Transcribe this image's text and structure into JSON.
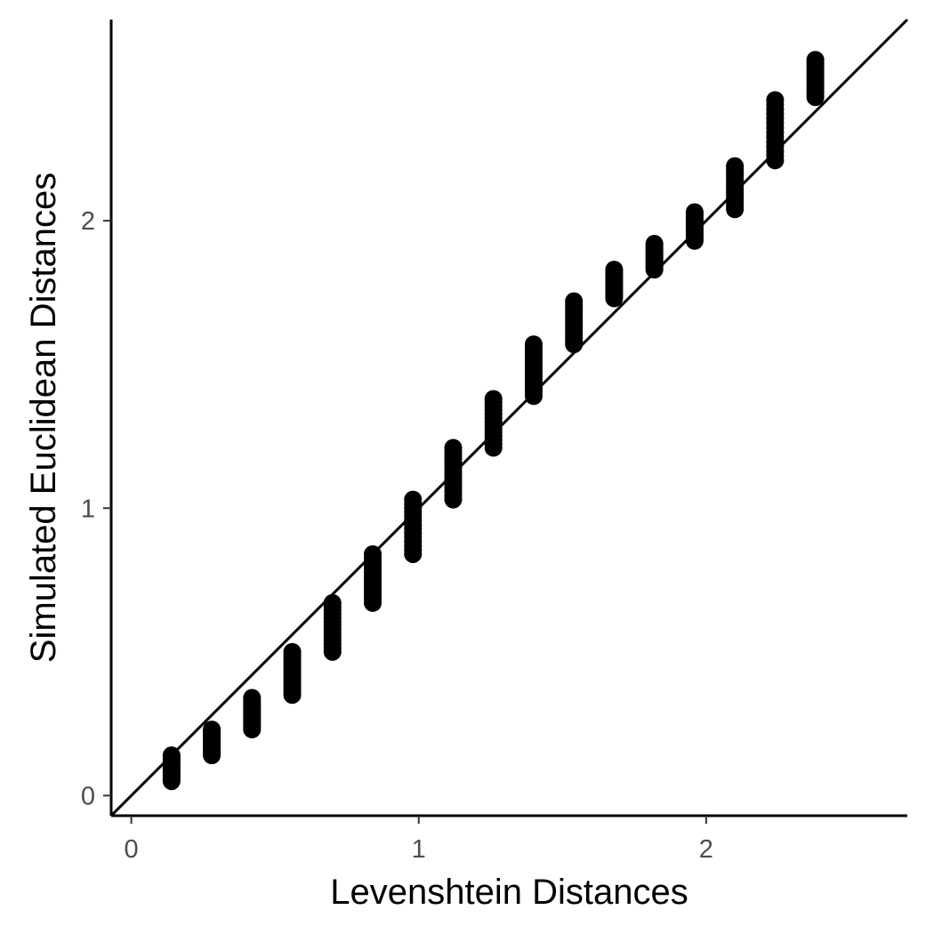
{
  "chart_data": {
    "type": "scatter",
    "title": "",
    "xlabel": "Levenshtein Distances",
    "ylabel": "Simulated Euclidean Distances",
    "xlim": [
      -0.07,
      2.7
    ],
    "ylim": [
      -0.07,
      2.7
    ],
    "x_ticks": [
      0,
      1,
      2
    ],
    "y_ticks": [
      0,
      1,
      2
    ],
    "x_tick_labels": [
      "0",
      "1",
      "2"
    ],
    "y_tick_labels": [
      "0",
      "1",
      "2"
    ],
    "grid": false,
    "legend": "none",
    "reference_line": {
      "type": "identity",
      "slope": 1,
      "intercept": 0,
      "color": "#000000"
    },
    "point_color": "#000000",
    "clusters": [
      {
        "x": 0.14,
        "y_min": 0.05,
        "y_max": 0.14
      },
      {
        "x": 0.28,
        "y_min": 0.14,
        "y_max": 0.23
      },
      {
        "x": 0.42,
        "y_min": 0.23,
        "y_max": 0.34
      },
      {
        "x": 0.56,
        "y_min": 0.35,
        "y_max": 0.5
      },
      {
        "x": 0.7,
        "y_min": 0.5,
        "y_max": 0.67
      },
      {
        "x": 0.84,
        "y_min": 0.67,
        "y_max": 0.84
      },
      {
        "x": 0.98,
        "y_min": 0.84,
        "y_max": 1.03
      },
      {
        "x": 1.12,
        "y_min": 1.03,
        "y_max": 1.21
      },
      {
        "x": 1.26,
        "y_min": 1.21,
        "y_max": 1.38
      },
      {
        "x": 1.4,
        "y_min": 1.39,
        "y_max": 1.57
      },
      {
        "x": 1.54,
        "y_min": 1.57,
        "y_max": 1.72
      },
      {
        "x": 1.68,
        "y_min": 1.73,
        "y_max": 1.83
      },
      {
        "x": 1.82,
        "y_min": 1.83,
        "y_max": 1.92
      },
      {
        "x": 1.96,
        "y_min": 1.93,
        "y_max": 2.03
      },
      {
        "x": 2.1,
        "y_min": 2.04,
        "y_max": 2.19
      },
      {
        "x": 2.24,
        "y_min": 2.21,
        "y_max": 2.42
      },
      {
        "x": 2.38,
        "y_min": 2.43,
        "y_max": 2.56
      }
    ]
  }
}
